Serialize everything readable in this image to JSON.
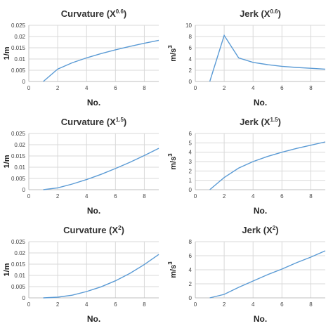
{
  "colors": {
    "series": "#5b9bd5"
  },
  "chart_data": [
    {
      "type": "line",
      "title": "Curvature (X",
      "title_sup": "0.6",
      "title_end": ")",
      "xlabel": "No.",
      "ylabel": "1/m",
      "xlim": [
        0,
        9
      ],
      "ylim": [
        0,
        0.025
      ],
      "xticks": [
        0,
        2,
        4,
        6,
        8
      ],
      "yticks": [
        0,
        0.005,
        0.01,
        0.015,
        0.02,
        0.025
      ],
      "ytick_labels": [
        "0",
        "0.005",
        "0.01",
        "0.015",
        "0.02",
        "0.025"
      ],
      "grid": true,
      "series": [
        {
          "x": [
            1,
            2,
            3,
            4,
            5,
            6,
            7,
            8,
            9
          ],
          "y": [
            0,
            0.0055,
            0.0083,
            0.0105,
            0.0124,
            0.0141,
            0.0156,
            0.017,
            0.0183
          ]
        }
      ]
    },
    {
      "type": "line",
      "title": "Jerk (X",
      "title_sup": "0.6",
      "title_end": ")",
      "xlabel": "No.",
      "ylabel": "m/s",
      "ylabel_sup": "3",
      "xlim": [
        0,
        9
      ],
      "ylim": [
        0,
        10
      ],
      "xticks": [
        0,
        2,
        4,
        6,
        8
      ],
      "yticks": [
        0,
        2,
        4,
        6,
        8,
        10
      ],
      "ytick_labels": [
        "0",
        "2",
        "4",
        "6",
        "8",
        "10"
      ],
      "grid": true,
      "series": [
        {
          "x": [
            1,
            2,
            3,
            4,
            5,
            6,
            7,
            8,
            9
          ],
          "y": [
            0,
            8.2,
            4.2,
            3.4,
            3.0,
            2.7,
            2.5,
            2.35,
            2.2
          ]
        }
      ]
    },
    {
      "type": "line",
      "title": "Curvature (X",
      "title_sup": "1.5",
      "title_end": ")",
      "xlabel": "No.",
      "ylabel": "1/m",
      "xlim": [
        0,
        9
      ],
      "ylim": [
        0,
        0.025
      ],
      "xticks": [
        0,
        2,
        4,
        6,
        8
      ],
      "yticks": [
        0,
        0.005,
        0.01,
        0.015,
        0.02,
        0.025
      ],
      "ytick_labels": [
        "0",
        "0.005",
        "0.01",
        "0.015",
        "0.02",
        "0.025"
      ],
      "grid": true,
      "series": [
        {
          "x": [
            1,
            2,
            3,
            4,
            5,
            6,
            7,
            8,
            9
          ],
          "y": [
            0,
            0.0008,
            0.0025,
            0.0045,
            0.0068,
            0.0094,
            0.0122,
            0.0152,
            0.0184
          ]
        }
      ]
    },
    {
      "type": "line",
      "title": "Jerk (X",
      "title_sup": "1.5",
      "title_end": ")",
      "xlabel": "No.",
      "ylabel": "m/s",
      "ylabel_sup": "3",
      "xlim": [
        0,
        9
      ],
      "ylim": [
        0,
        6
      ],
      "xticks": [
        0,
        2,
        4,
        6,
        8
      ],
      "yticks": [
        0,
        1,
        2,
        3,
        4,
        5,
        6
      ],
      "ytick_labels": [
        "0",
        "1",
        "2",
        "3",
        "4",
        "5",
        "6"
      ],
      "grid": true,
      "series": [
        {
          "x": [
            1,
            2,
            3,
            4,
            5,
            6,
            7,
            8,
            9
          ],
          "y": [
            0,
            1.3,
            2.3,
            3.0,
            3.55,
            4.0,
            4.4,
            4.75,
            5.1
          ]
        }
      ]
    },
    {
      "type": "line",
      "title": "Curvature (X",
      "title_sup": "2",
      "title_end": ")",
      "xlabel": "No.",
      "ylabel": "1/m",
      "xlim": [
        0,
        9
      ],
      "ylim": [
        0,
        0.025
      ],
      "xticks": [
        0,
        2,
        4,
        6,
        8
      ],
      "yticks": [
        0,
        0.005,
        0.01,
        0.015,
        0.02,
        0.025
      ],
      "ytick_labels": [
        "0",
        "0.005",
        "0.01",
        "0.015",
        "0.02",
        "0.025"
      ],
      "grid": true,
      "series": [
        {
          "x": [
            1,
            2,
            3,
            4,
            5,
            6,
            7,
            8,
            9
          ],
          "y": [
            0,
            0.0003,
            0.0012,
            0.0028,
            0.0049,
            0.0076,
            0.0109,
            0.0148,
            0.0193
          ]
        }
      ]
    },
    {
      "type": "line",
      "title": "Jerk (X",
      "title_sup": "2",
      "title_end": ")",
      "xlabel": "No.",
      "ylabel": "m/s",
      "ylabel_sup": "3",
      "xlim": [
        0,
        9
      ],
      "ylim": [
        0,
        8
      ],
      "xticks": [
        0,
        2,
        4,
        6,
        8
      ],
      "yticks": [
        0,
        2,
        4,
        6,
        8
      ],
      "ytick_labels": [
        "0",
        "2",
        "4",
        "6",
        "8"
      ],
      "grid": true,
      "series": [
        {
          "x": [
            1,
            2,
            3,
            4,
            5,
            6,
            7,
            8,
            9
          ],
          "y": [
            0,
            0.5,
            1.5,
            2.4,
            3.3,
            4.1,
            5.0,
            5.8,
            6.7
          ]
        }
      ]
    }
  ]
}
